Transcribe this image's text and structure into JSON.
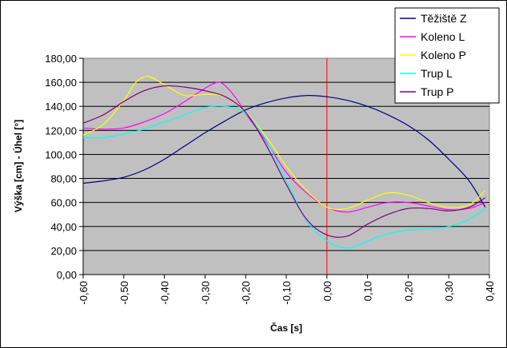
{
  "chart_data": {
    "type": "line",
    "title": "",
    "xlabel": "Čas [s]",
    "ylabel": "Výška [cm] - Úhel [°]",
    "xlim": [
      -0.6,
      0.4
    ],
    "ylim": [
      0,
      180
    ],
    "x_ticks": [
      "-0,60",
      "-0,50",
      "-0,40",
      "-0,30",
      "-0,20",
      "-0,10",
      "0,00",
      "0,10",
      "0,20",
      "0,30",
      "0,40"
    ],
    "y_ticks": [
      "0,00",
      "20,00",
      "40,00",
      "60,00",
      "80,00",
      "100,00",
      "120,00",
      "140,00",
      "160,00",
      "180,00"
    ],
    "grid": "horizontal",
    "legend_position": "top-right",
    "plot_background": "#c0c0c0",
    "marker_line": {
      "x": 0.0,
      "color": "#ff0000"
    },
    "series": [
      {
        "name": "Těžiště Z",
        "color": "#000080",
        "points": [
          [
            -0.6,
            76
          ],
          [
            -0.55,
            78
          ],
          [
            -0.5,
            81
          ],
          [
            -0.45,
            87
          ],
          [
            -0.4,
            96
          ],
          [
            -0.35,
            107
          ],
          [
            -0.3,
            118
          ],
          [
            -0.25,
            128
          ],
          [
            -0.2,
            137
          ],
          [
            -0.15,
            143
          ],
          [
            -0.1,
            147
          ],
          [
            -0.05,
            149
          ],
          [
            0.0,
            148
          ],
          [
            0.05,
            145
          ],
          [
            0.1,
            140
          ],
          [
            0.15,
            133
          ],
          [
            0.2,
            124
          ],
          [
            0.25,
            112
          ],
          [
            0.3,
            96
          ],
          [
            0.35,
            78
          ],
          [
            0.39,
            56
          ]
        ]
      },
      {
        "name": "Koleno L",
        "color": "#ff00ff",
        "points": [
          [
            -0.6,
            122
          ],
          [
            -0.55,
            121
          ],
          [
            -0.5,
            122
          ],
          [
            -0.45,
            127
          ],
          [
            -0.4,
            134
          ],
          [
            -0.35,
            144
          ],
          [
            -0.3,
            155
          ],
          [
            -0.27,
            160
          ],
          [
            -0.25,
            157
          ],
          [
            -0.22,
            145
          ],
          [
            -0.2,
            134
          ],
          [
            -0.15,
            111
          ],
          [
            -0.1,
            85
          ],
          [
            -0.05,
            68
          ],
          [
            0.0,
            56
          ],
          [
            0.05,
            52
          ],
          [
            0.1,
            56
          ],
          [
            0.15,
            60
          ],
          [
            0.2,
            60
          ],
          [
            0.25,
            57
          ],
          [
            0.3,
            54
          ],
          [
            0.35,
            55
          ],
          [
            0.39,
            60
          ]
        ]
      },
      {
        "name": "Koleno P",
        "color": "#ffff00",
        "points": [
          [
            -0.6,
            116
          ],
          [
            -0.55,
            125
          ],
          [
            -0.5,
            145
          ],
          [
            -0.47,
            160
          ],
          [
            -0.44,
            165
          ],
          [
            -0.4,
            158
          ],
          [
            -0.35,
            149
          ],
          [
            -0.3,
            150
          ],
          [
            -0.25,
            148
          ],
          [
            -0.2,
            135
          ],
          [
            -0.15,
            115
          ],
          [
            -0.1,
            90
          ],
          [
            -0.05,
            70
          ],
          [
            0.0,
            56
          ],
          [
            0.05,
            55
          ],
          [
            0.1,
            62
          ],
          [
            0.15,
            68
          ],
          [
            0.2,
            66
          ],
          [
            0.25,
            60
          ],
          [
            0.3,
            56
          ],
          [
            0.35,
            58
          ],
          [
            0.39,
            70
          ]
        ]
      },
      {
        "name": "Trup L",
        "color": "#00ffff",
        "points": [
          [
            -0.6,
            114
          ],
          [
            -0.55,
            114
          ],
          [
            -0.5,
            117
          ],
          [
            -0.45,
            121
          ],
          [
            -0.4,
            127
          ],
          [
            -0.35,
            133
          ],
          [
            -0.3,
            139
          ],
          [
            -0.25,
            140
          ],
          [
            -0.2,
            134
          ],
          [
            -0.15,
            112
          ],
          [
            -0.1,
            78
          ],
          [
            -0.05,
            45
          ],
          [
            0.0,
            28
          ],
          [
            0.05,
            22
          ],
          [
            0.1,
            28
          ],
          [
            0.15,
            34
          ],
          [
            0.2,
            37
          ],
          [
            0.25,
            38
          ],
          [
            0.3,
            40
          ],
          [
            0.35,
            46
          ],
          [
            0.39,
            55
          ]
        ]
      },
      {
        "name": "Trup P",
        "color": "#800080",
        "points": [
          [
            -0.6,
            126
          ],
          [
            -0.55,
            133
          ],
          [
            -0.5,
            144
          ],
          [
            -0.45,
            153
          ],
          [
            -0.4,
            157
          ],
          [
            -0.35,
            156
          ],
          [
            -0.3,
            153
          ],
          [
            -0.25,
            148
          ],
          [
            -0.2,
            135
          ],
          [
            -0.15,
            108
          ],
          [
            -0.1,
            75
          ],
          [
            -0.05,
            46
          ],
          [
            0.0,
            33
          ],
          [
            0.05,
            32
          ],
          [
            0.1,
            42
          ],
          [
            0.15,
            50
          ],
          [
            0.2,
            55
          ],
          [
            0.25,
            55
          ],
          [
            0.3,
            53
          ],
          [
            0.35,
            56
          ],
          [
            0.39,
            64
          ]
        ]
      }
    ]
  }
}
